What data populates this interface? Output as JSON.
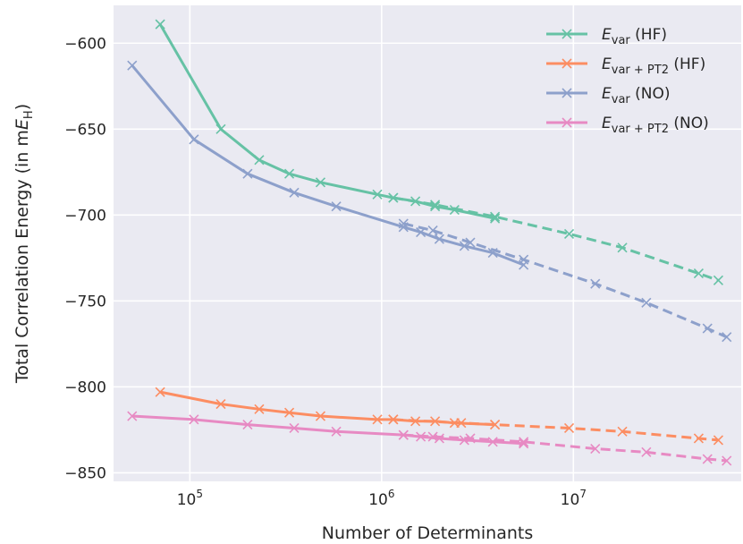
{
  "chart_data": {
    "type": "line",
    "xlabel": "Number of Determinants",
    "ylabel": "Total Correlation Energy (in mE_H)",
    "ylabel_parts": {
      "main": "Total Correlation Energy (in m",
      "var": "E",
      "sub": "H",
      "close": ")"
    },
    "x_scale": "log",
    "xlim": [
      40000,
      75000000
    ],
    "ylim": [
      -855,
      -578
    ],
    "x_ticks": [
      {
        "value": 100000,
        "base": "10",
        "exp": "5"
      },
      {
        "value": 1000000,
        "base": "10",
        "exp": "6"
      },
      {
        "value": 10000000,
        "base": "10",
        "exp": "7"
      }
    ],
    "y_ticks": [
      {
        "value": -600,
        "label": "−600"
      },
      {
        "value": -650,
        "label": "−650"
      },
      {
        "value": -700,
        "label": "−700"
      },
      {
        "value": -750,
        "label": "−750"
      },
      {
        "value": -800,
        "label": "−800"
      },
      {
        "value": -850,
        "label": "−850"
      }
    ],
    "grid": true,
    "legend_position": "top-right",
    "series": [
      {
        "id": "evar_hf",
        "name": "E_var (HF)",
        "legend": {
          "var": "E",
          "sub": "var",
          "suffix": " (HF)"
        },
        "color": "#66c2a5",
        "solid": [
          [
            70000,
            -589
          ],
          [
            145000,
            -650
          ],
          [
            230000,
            -668
          ],
          [
            330000,
            -676
          ],
          [
            480000,
            -681
          ],
          [
            950000,
            -688
          ],
          [
            1150000,
            -690
          ],
          [
            1500000,
            -692
          ],
          [
            1900000,
            -695
          ],
          [
            2400000,
            -697
          ],
          [
            3900000,
            -702
          ]
        ],
        "dashed": [
          [
            1150000,
            -690
          ],
          [
            1900000,
            -694
          ],
          [
            3900000,
            -701
          ],
          [
            9500000,
            -711
          ],
          [
            18000000,
            -719
          ],
          [
            45000000,
            -734
          ],
          [
            57000000,
            -738
          ]
        ]
      },
      {
        "id": "evarpt2_hf",
        "name": "E_var+PT2 (HF)",
        "legend": {
          "var": "E",
          "sub": "var + PT2",
          "suffix": " (HF)"
        },
        "color": "#fc8d62",
        "solid": [
          [
            70000,
            -803
          ],
          [
            145000,
            -810
          ],
          [
            230000,
            -813
          ],
          [
            330000,
            -815
          ],
          [
            480000,
            -817
          ],
          [
            950000,
            -819
          ],
          [
            1150000,
            -819
          ],
          [
            1500000,
            -820
          ],
          [
            1900000,
            -820
          ],
          [
            2400000,
            -821
          ],
          [
            3900000,
            -822
          ]
        ],
        "dashed": [
          [
            1150000,
            -819
          ],
          [
            2600000,
            -821
          ],
          [
            3900000,
            -822
          ],
          [
            9500000,
            -824
          ],
          [
            18000000,
            -826
          ],
          [
            45000000,
            -830
          ],
          [
            57000000,
            -831
          ]
        ]
      },
      {
        "id": "evar_no",
        "name": "E_var (NO)",
        "legend": {
          "var": "E",
          "sub": "var",
          "suffix": " (NO)"
        },
        "color": "#8da0cb",
        "solid": [
          [
            50000,
            -613
          ],
          [
            105000,
            -656
          ],
          [
            200000,
            -676
          ],
          [
            350000,
            -687
          ],
          [
            580000,
            -695
          ],
          [
            1300000,
            -707
          ],
          [
            1600000,
            -710
          ],
          [
            2000000,
            -714
          ],
          [
            2700000,
            -718
          ],
          [
            3800000,
            -722
          ],
          [
            5500000,
            -729
          ]
        ],
        "dashed": [
          [
            1300000,
            -705
          ],
          [
            1850000,
            -709
          ],
          [
            2900000,
            -716
          ],
          [
            5500000,
            -726
          ],
          [
            13000000,
            -740
          ],
          [
            24000000,
            -751
          ],
          [
            50000000,
            -766
          ],
          [
            63000000,
            -771
          ]
        ]
      },
      {
        "id": "evarpt2_no",
        "name": "E_var+PT2 (NO)",
        "legend": {
          "var": "E",
          "sub": "var + PT2",
          "suffix": " (NO)"
        },
        "color": "#e78ac3",
        "solid": [
          [
            50000,
            -817
          ],
          [
            105000,
            -819
          ],
          [
            200000,
            -822
          ],
          [
            350000,
            -824
          ],
          [
            580000,
            -826
          ],
          [
            1300000,
            -828
          ],
          [
            1600000,
            -829
          ],
          [
            2000000,
            -830
          ],
          [
            2700000,
            -831
          ],
          [
            3800000,
            -832
          ],
          [
            5500000,
            -833
          ]
        ],
        "dashed": [
          [
            1300000,
            -828
          ],
          [
            1850000,
            -829
          ],
          [
            2900000,
            -830
          ],
          [
            5500000,
            -832
          ],
          [
            13000000,
            -836
          ],
          [
            24000000,
            -838
          ],
          [
            50000000,
            -842
          ],
          [
            63000000,
            -843
          ]
        ]
      }
    ]
  }
}
